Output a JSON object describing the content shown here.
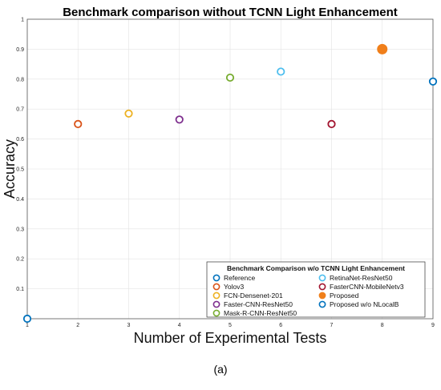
{
  "chart_data": {
    "type": "scatter",
    "title": "Benchmark comparison without TCNN Light Enhancement",
    "xlabel": "Number of Experimental Tests",
    "ylabel": "Accuracy",
    "xlim": [
      1,
      9
    ],
    "ylim": [
      0,
      1
    ],
    "xticks": [
      "1",
      "2",
      "3",
      "4",
      "5",
      "6",
      "7",
      "8",
      "9"
    ],
    "yticks": [
      "0.1",
      "0.2",
      "0.3",
      "0.4",
      "0.5",
      "0.6",
      "0.7",
      "0.8",
      "0.9",
      "1"
    ],
    "grid": true,
    "legend": {
      "title": "Benchmark Comparison w/o TCNN Light Enhancement",
      "placement": "bottom-right",
      "columns": 2
    },
    "series": [
      {
        "name": "Reference",
        "x": 1,
        "y": 0.0,
        "color": "#0072BD",
        "filled": false
      },
      {
        "name": "Yolov3",
        "x": 2,
        "y": 0.65,
        "color": "#D95319",
        "filled": false
      },
      {
        "name": "FCN-Densenet-201",
        "x": 3,
        "y": 0.685,
        "color": "#EDB120",
        "filled": false
      },
      {
        "name": "Faster-CNN-ResNet50",
        "x": 4,
        "y": 0.665,
        "color": "#7E2F8E",
        "filled": false
      },
      {
        "name": "Mask-R-CNN-ResNet50",
        "x": 5,
        "y": 0.805,
        "color": "#77AC30",
        "filled": false
      },
      {
        "name": "RetinaNet-ResNet50",
        "x": 6,
        "y": 0.825,
        "color": "#4DBEEE",
        "filled": false
      },
      {
        "name": "FasterCNN-MobileNetv3",
        "x": 7,
        "y": 0.65,
        "color": "#A2142F",
        "filled": false
      },
      {
        "name": "Proposed",
        "x": 8,
        "y": 0.9,
        "color": "#F07F1A",
        "filled": true
      },
      {
        "name": "Proposed w/o NLocalB",
        "x": 9,
        "y": 0.792,
        "color": "#0072BD",
        "filled": false
      }
    ]
  },
  "caption": "(a)"
}
